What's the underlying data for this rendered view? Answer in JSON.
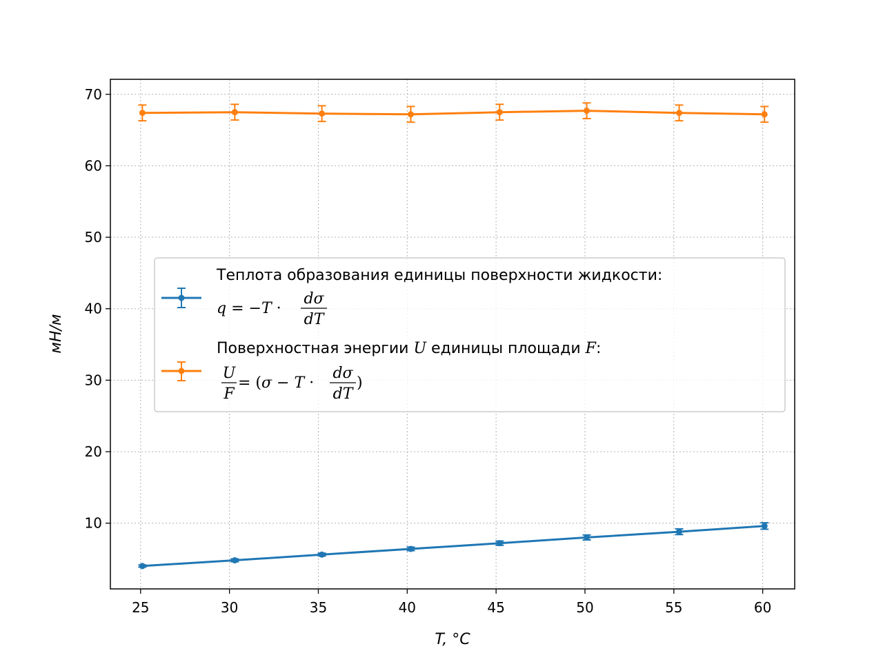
{
  "chart_data": {
    "type": "line",
    "xlabel": "T, °C",
    "ylabel": "мН/м",
    "xlim": [
      23.3,
      61.8
    ],
    "ylim": [
      0.8,
      72.1
    ],
    "x_ticks": [
      25,
      30,
      35,
      40,
      45,
      50,
      55,
      60
    ],
    "y_ticks": [
      10,
      20,
      30,
      40,
      50,
      60,
      70
    ],
    "grid": true,
    "legend_position": "center",
    "series": [
      {
        "name": "Теплота образования единицы поверхности жидкости: q = −T·dσ/dT",
        "color": "#1f77b4",
        "x": [
          25.1,
          30.3,
          35.2,
          40.2,
          45.2,
          50.1,
          55.3,
          60.1
        ],
        "y": [
          4.0,
          4.8,
          5.6,
          6.4,
          7.2,
          8.0,
          8.8,
          9.6
        ],
        "yerr": [
          0.15,
          0.2,
          0.2,
          0.25,
          0.3,
          0.35,
          0.4,
          0.45
        ]
      },
      {
        "name": "Поверхностная энергии U единицы площади F: U/F = (σ − T·dσ/dT)",
        "color": "#ff7f0e",
        "x": [
          25.1,
          30.3,
          35.2,
          40.2,
          45.2,
          50.1,
          55.3,
          60.1
        ],
        "y": [
          67.4,
          67.5,
          67.3,
          67.2,
          67.5,
          67.7,
          67.4,
          67.2
        ],
        "yerr": [
          1.1,
          1.1,
          1.1,
          1.1,
          1.1,
          1.1,
          1.1,
          1.1
        ]
      }
    ]
  },
  "legend": {
    "entry1_line1": "Теплота образования единицы поверхности жидкости:",
    "entry1_q": "q",
    "entry1_eq": " = −",
    "entry1_T": "T",
    "entry1_dot": " · ",
    "entry1_num": "dσ",
    "entry1_den": "dT",
    "entry2_line1_a": "Поверхностная энергии ",
    "entry2_line1_U": "U",
    "entry2_line1_b": " единицы площади ",
    "entry2_line1_F": "F",
    "entry2_line1_c": ":",
    "entry2_num": "U",
    "entry2_den": "F",
    "entry2_eq_open": " = (",
    "entry2_sigma": "σ",
    "entry2_minus": " − ",
    "entry2_T": "T",
    "entry2_dot": " · ",
    "entry2_dnum": "dσ",
    "entry2_dden": "dT",
    "entry2_close": ")"
  }
}
